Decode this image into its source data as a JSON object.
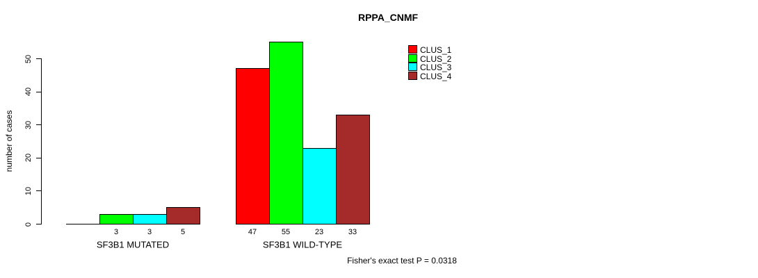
{
  "title": "RPPA_CNMF",
  "stat_note": "Fisher's exact test P = 0.0318",
  "chart_data": {
    "type": "bar",
    "title": "RPPA_CNMF",
    "xlabel": "",
    "ylabel": "number of cases",
    "ylim": [
      0,
      55
    ],
    "yticks": [
      0,
      10,
      20,
      30,
      40,
      50
    ],
    "grid": false,
    "legend_position": "top-right",
    "categories": [
      "SF3B1 MUTATED",
      "SF3B1 WILD-TYPE"
    ],
    "series": [
      {
        "name": "CLUS_1",
        "color": "#ff0000",
        "values": [
          0,
          47
        ]
      },
      {
        "name": "CLUS_2",
        "color": "#00ff00",
        "values": [
          3,
          55
        ]
      },
      {
        "name": "CLUS_3",
        "color": "#00ffff",
        "values": [
          3,
          23
        ]
      },
      {
        "name": "CLUS_4",
        "color": "#a52a2a",
        "values": [
          5,
          33
        ]
      }
    ],
    "bar_labels": [
      [
        "",
        "3",
        "3",
        "5"
      ],
      [
        "47",
        "55",
        "23",
        "33"
      ]
    ],
    "annotation": "Fisher's exact test P = 0.0318"
  }
}
